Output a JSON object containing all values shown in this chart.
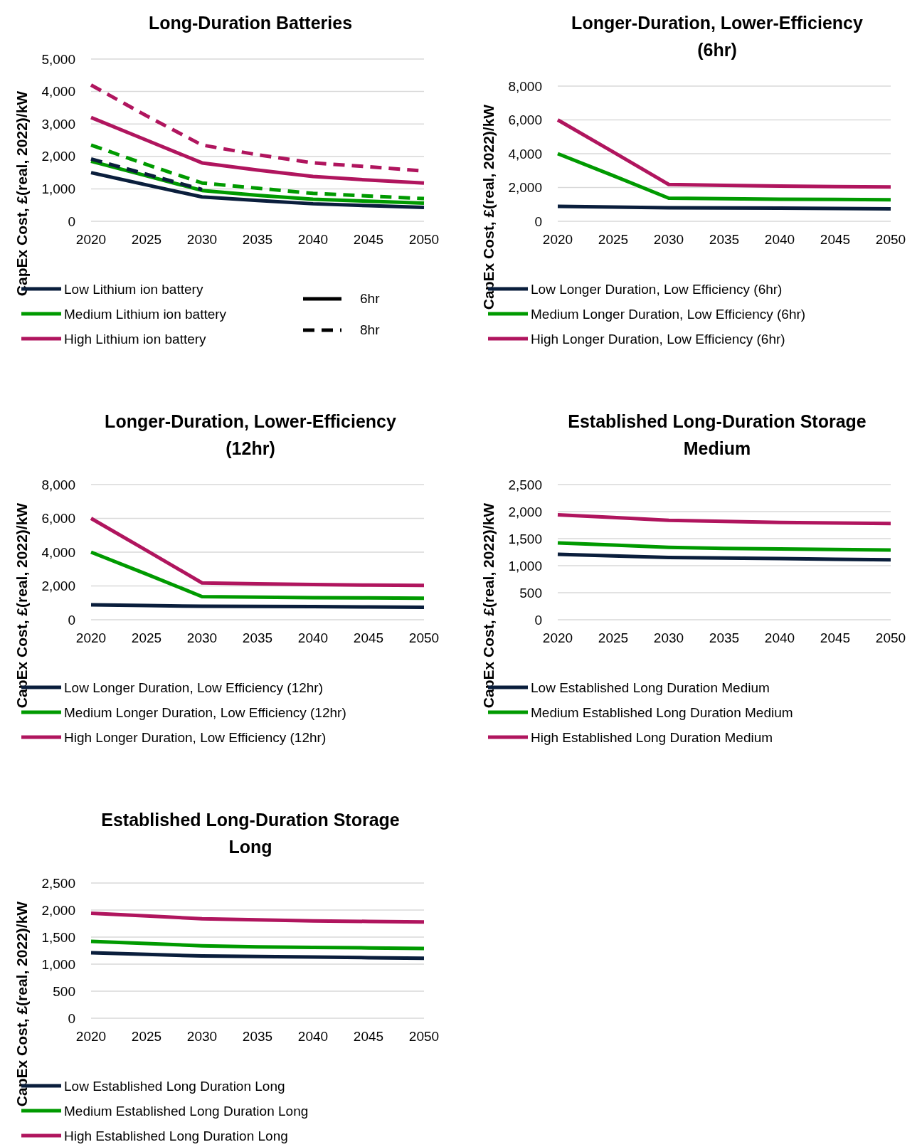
{
  "chart_data": [
    {
      "type": "line",
      "title": "Long-Duration Batteries",
      "ylabel": "CapEx Cost, £(real, 2022)/kW",
      "x": [
        2020,
        2025,
        2030,
        2035,
        2040,
        2045,
        2050
      ],
      "xlim": [
        2020,
        2050
      ],
      "xticks": [
        2020,
        2025,
        2030,
        2035,
        2040,
        2045,
        2050
      ],
      "ylim": [
        0,
        5000
      ],
      "yticks": [
        {
          "value": 0,
          "label": "0"
        },
        {
          "value": 1000,
          "label": "1,000"
        },
        {
          "value": 2000,
          "label": "2,000"
        },
        {
          "value": 3000,
          "label": "3,000"
        },
        {
          "value": 4000,
          "label": "4,000"
        },
        {
          "value": 5000,
          "label": "5,000"
        }
      ],
      "grid": "y",
      "legend": "bottom",
      "marker": "none",
      "annotations": [
        "6hr",
        "8hr"
      ],
      "series": [
        {
          "name": "Low Lithium ion battery",
          "color": "#0a1e3c",
          "line_style": "solid",
          "values": [
            1500,
            1120,
            750,
            640,
            540,
            480,
            430
          ]
        },
        {
          "name": "Medium Lithium ion battery",
          "color": "#009a00",
          "line_style": "solid",
          "values": [
            1850,
            1400,
            950,
            800,
            680,
            620,
            560
          ]
        },
        {
          "name": "High Lithium ion battery",
          "color": "#b0155e",
          "line_style": "solid",
          "values": [
            3200,
            2500,
            1800,
            1580,
            1380,
            1270,
            1180
          ]
        },
        {
          "color": "#0a1e3c",
          "line_style": "dashed",
          "values": [
            1920,
            1450,
            980,
            null,
            null,
            null,
            null
          ]
        },
        {
          "color": "#009a00",
          "line_style": "dashed",
          "values": [
            2350,
            1750,
            1180,
            1020,
            860,
            780,
            700
          ]
        },
        {
          "color": "#b0155e",
          "line_style": "dashed",
          "values": [
            4200,
            3250,
            2350,
            2050,
            1800,
            1680,
            1550
          ]
        }
      ]
    },
    {
      "type": "line",
      "title": "Longer-Duration, Lower-Efficiency (6hr)",
      "ylabel": "CapEx Cost, £(real, 2022)/kW",
      "x": [
        2020,
        2025,
        2030,
        2035,
        2040,
        2045,
        2050
      ],
      "xlim": [
        2020,
        2050
      ],
      "xticks": [
        2020,
        2025,
        2030,
        2035,
        2040,
        2045,
        2050
      ],
      "ylim": [
        0,
        8000
      ],
      "yticks": [
        {
          "value": 0,
          "label": "0"
        },
        {
          "value": 2000,
          "label": "2,000"
        },
        {
          "value": 4000,
          "label": "4,000"
        },
        {
          "value": 6000,
          "label": "6,000"
        },
        {
          "value": 8000,
          "label": "8,000"
        }
      ],
      "grid": "y",
      "legend": "bottom",
      "marker": "none",
      "series": [
        {
          "name": "Low Longer Duration, Low Efficiency (6hr)",
          "color": "#0a1e3c",
          "values": [
            880,
            840,
            800,
            790,
            780,
            760,
            740
          ]
        },
        {
          "name": "Medium Longer Duration, Low Efficiency (6hr)",
          "color": "#009a00",
          "values": [
            4000,
            2700,
            1370,
            1340,
            1310,
            1290,
            1270
          ]
        },
        {
          "name": "High Longer Duration, Low Efficiency (6hr)",
          "color": "#b0155e",
          "values": [
            6000,
            4100,
            2180,
            2130,
            2080,
            2050,
            2030
          ]
        }
      ]
    },
    {
      "type": "line",
      "title": "Longer-Duration, Lower-Efficiency (12hr)",
      "ylabel": "CapEx Cost, £(real, 2022)/kW",
      "x": [
        2020,
        2025,
        2030,
        2035,
        2040,
        2045,
        2050
      ],
      "xlim": [
        2020,
        2050
      ],
      "xticks": [
        2020,
        2025,
        2030,
        2035,
        2040,
        2045,
        2050
      ],
      "ylim": [
        0,
        8000
      ],
      "yticks": [
        {
          "value": 0,
          "label": "0"
        },
        {
          "value": 2000,
          "label": "2,000"
        },
        {
          "value": 4000,
          "label": "4,000"
        },
        {
          "value": 6000,
          "label": "6,000"
        },
        {
          "value": 8000,
          "label": "8,000"
        }
      ],
      "grid": "y",
      "legend": "bottom",
      "marker": "none",
      "series": [
        {
          "name": "Low Longer Duration, Low Efficiency (12hr)",
          "color": "#0a1e3c",
          "values": [
            880,
            840,
            800,
            790,
            780,
            760,
            740
          ]
        },
        {
          "name": "Medium Longer Duration, Low Efficiency (12hr)",
          "color": "#009a00",
          "values": [
            4000,
            2700,
            1370,
            1340,
            1310,
            1290,
            1270
          ]
        },
        {
          "name": "High Longer Duration, Low Efficiency (12hr)",
          "color": "#b0155e",
          "values": [
            6000,
            4100,
            2180,
            2130,
            2080,
            2050,
            2030
          ]
        }
      ]
    },
    {
      "type": "line",
      "title": "Established Long-Duration Storage Medium",
      "ylabel": "CapEx Cost, £(real, 2022)/kW",
      "x": [
        2020,
        2025,
        2030,
        2035,
        2040,
        2045,
        2050
      ],
      "xlim": [
        2020,
        2050
      ],
      "xticks": [
        2020,
        2025,
        2030,
        2035,
        2040,
        2045,
        2050
      ],
      "ylim": [
        0,
        2500
      ],
      "yticks": [
        {
          "value": 0,
          "label": "0"
        },
        {
          "value": 500,
          "label": "500"
        },
        {
          "value": 1000,
          "label": "1,000"
        },
        {
          "value": 1500,
          "label": "1,500"
        },
        {
          "value": 2000,
          "label": "2,000"
        },
        {
          "value": 2500,
          "label": "2,500"
        }
      ],
      "grid": "y",
      "legend": "bottom",
      "marker": "none",
      "series": [
        {
          "name": "Low Established Long Duration Medium",
          "color": "#0a1e3c",
          "values": [
            1210,
            1180,
            1150,
            1140,
            1130,
            1120,
            1110
          ]
        },
        {
          "name": "Medium Established Long Duration Medium",
          "color": "#009a00",
          "values": [
            1420,
            1380,
            1340,
            1320,
            1310,
            1300,
            1290
          ]
        },
        {
          "name": "High Established Long Duration Medium",
          "color": "#b0155e",
          "values": [
            1940,
            1890,
            1840,
            1820,
            1800,
            1790,
            1780
          ]
        }
      ]
    },
    {
      "type": "line",
      "title": "Established Long-Duration Storage Long",
      "ylabel": "CapEx Cost, £(real, 2022)/kW",
      "x": [
        2020,
        2025,
        2030,
        2035,
        2040,
        2045,
        2050
      ],
      "xlim": [
        2020,
        2050
      ],
      "xticks": [
        2020,
        2025,
        2030,
        2035,
        2040,
        2045,
        2050
      ],
      "ylim": [
        0,
        2500
      ],
      "yticks": [
        {
          "value": 0,
          "label": "0"
        },
        {
          "value": 500,
          "label": "500"
        },
        {
          "value": 1000,
          "label": "1,000"
        },
        {
          "value": 1500,
          "label": "1,500"
        },
        {
          "value": 2000,
          "label": "2,000"
        },
        {
          "value": 2500,
          "label": "2,500"
        }
      ],
      "grid": "y",
      "legend": "bottom",
      "marker": "none",
      "series": [
        {
          "name": "Low Established Long Duration Long",
          "color": "#0a1e3c",
          "values": [
            1210,
            1180,
            1150,
            1140,
            1130,
            1120,
            1110
          ]
        },
        {
          "name": "Medium Established Long Duration Long",
          "color": "#009a00",
          "values": [
            1420,
            1380,
            1340,
            1320,
            1310,
            1300,
            1290
          ]
        },
        {
          "name": "High Established Long Duration Long",
          "color": "#b0155e",
          "values": [
            1940,
            1890,
            1840,
            1820,
            1800,
            1790,
            1780
          ]
        }
      ]
    }
  ]
}
